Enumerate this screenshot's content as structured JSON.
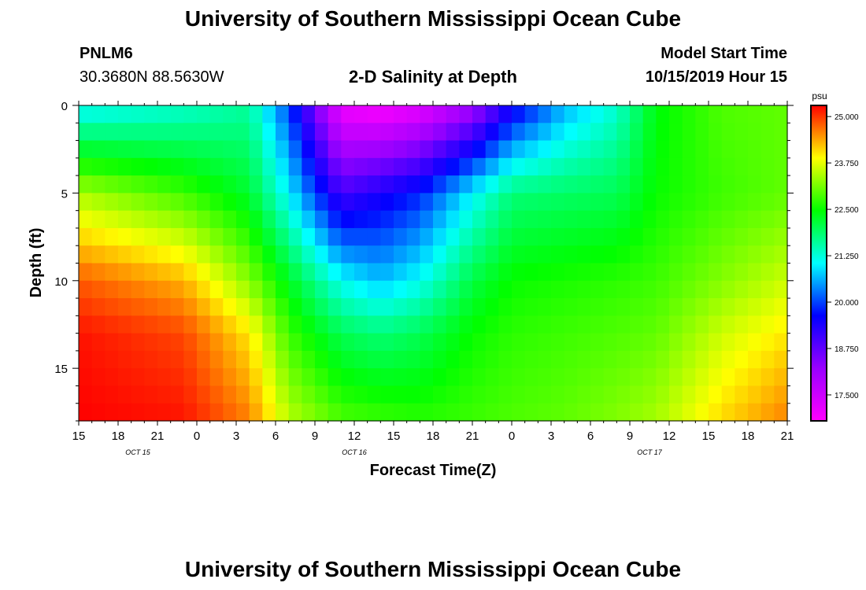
{
  "header": {
    "title": "University of Southern Mississippi Ocean Cube",
    "station_id": "PNLM6",
    "station_coords": "30.3680N 88.5630W",
    "plot_title": "2-D Salinity at Depth",
    "model_start_label": "Model Start Time",
    "model_start_value": "10/15/2019 Hour 15"
  },
  "footer": {
    "title": "University of Southern Mississippi Ocean Cube"
  },
  "chart_data": {
    "type": "heatmap",
    "title": "2-D Salinity at Depth",
    "xlabel": "Forecast Time(Z)",
    "ylabel": "Depth (ft)",
    "colorbar_unit": "psu",
    "xlim": [
      0,
      54
    ],
    "ylim": [
      0,
      18
    ],
    "x_ticks": [
      {
        "x": 0,
        "label": "15"
      },
      {
        "x": 3,
        "label": "18"
      },
      {
        "x": 6,
        "label": "21"
      },
      {
        "x": 9,
        "label": "0"
      },
      {
        "x": 12,
        "label": "3"
      },
      {
        "x": 15,
        "label": "6"
      },
      {
        "x": 18,
        "label": "9"
      },
      {
        "x": 21,
        "label": "12"
      },
      {
        "x": 24,
        "label": "15"
      },
      {
        "x": 27,
        "label": "18"
      },
      {
        "x": 30,
        "label": "21"
      },
      {
        "x": 33,
        "label": "0"
      },
      {
        "x": 36,
        "label": "3"
      },
      {
        "x": 39,
        "label": "6"
      },
      {
        "x": 42,
        "label": "9"
      },
      {
        "x": 45,
        "label": "12"
      },
      {
        "x": 48,
        "label": "15"
      },
      {
        "x": 51,
        "label": "18"
      },
      {
        "x": 54,
        "label": "21"
      }
    ],
    "date_labels": [
      {
        "x": 4.5,
        "label": "OCT 15"
      },
      {
        "x": 21,
        "label": "OCT 16"
      },
      {
        "x": 43.5,
        "label": "OCT 17"
      }
    ],
    "y_ticks": [
      {
        "y": 0,
        "label": "0"
      },
      {
        "y": 5,
        "label": "5"
      },
      {
        "y": 10,
        "label": "10"
      },
      {
        "y": 15,
        "label": "15"
      }
    ],
    "colorbar": {
      "min": 16.8,
      "max": 25.3,
      "ticks": [
        "17.500",
        "18.750",
        "20.000",
        "21.250",
        "22.500",
        "23.750",
        "25.000"
      ],
      "tick_values": [
        17.5,
        18.75,
        20.0,
        21.25,
        22.5,
        23.75,
        25.0
      ],
      "colors": [
        "#ff00ff",
        "#9900ff",
        "#0000ff",
        "#00ffff",
        "#00ff00",
        "#ffff00",
        "#ff0000"
      ]
    },
    "field": {
      "depths": [
        0,
        5,
        10,
        13,
        18
      ],
      "times": [
        0,
        8,
        13,
        16,
        20,
        23,
        26,
        30,
        33,
        37,
        41,
        44,
        49,
        54
      ],
      "salinity_psu": [
        [
          21.0,
          21.3,
          21.6,
          20.0,
          17.0,
          16.8,
          17.1,
          18.0,
          19.4,
          20.6,
          21.3,
          22.4,
          22.9,
          23.0
        ],
        [
          23.4,
          22.8,
          22.2,
          21.0,
          19.0,
          19.4,
          19.8,
          21.0,
          21.8,
          21.9,
          22.0,
          22.5,
          22.8,
          23.0
        ],
        [
          24.8,
          24.3,
          23.2,
          22.3,
          21.1,
          20.7,
          21.1,
          22.1,
          22.5,
          22.6,
          22.7,
          22.8,
          23.2,
          23.6
        ],
        [
          25.2,
          24.9,
          24.0,
          22.8,
          22.0,
          21.8,
          22.0,
          22.5,
          22.7,
          22.8,
          22.9,
          23.0,
          23.6,
          24.0
        ],
        [
          25.3,
          25.2,
          24.6,
          23.5,
          22.9,
          22.8,
          22.7,
          22.8,
          22.9,
          23.0,
          23.2,
          23.4,
          24.1,
          24.6
        ]
      ]
    }
  }
}
